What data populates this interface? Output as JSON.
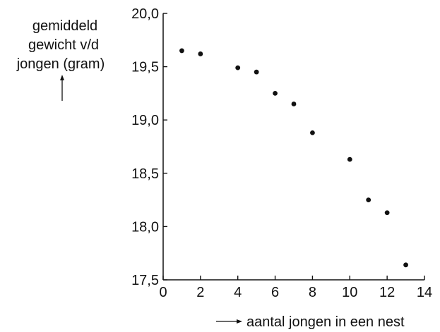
{
  "chart_data": {
    "type": "scatter",
    "title": "",
    "ylabel_lines": [
      "gemiddeld",
      "gewicht v/d",
      "jongen (gram)"
    ],
    "xlabel": "aantal jongen in een nest",
    "xlim": [
      0,
      14
    ],
    "ylim": [
      17.5,
      20.0
    ],
    "x_ticks": [
      {
        "value": 0,
        "label": "0"
      },
      {
        "value": 2,
        "label": "2"
      },
      {
        "value": 4,
        "label": "4"
      },
      {
        "value": 6,
        "label": "6"
      },
      {
        "value": 8,
        "label": "8"
      },
      {
        "value": 10,
        "label": "10"
      },
      {
        "value": 12,
        "label": "12"
      },
      {
        "value": 14,
        "label": "14"
      }
    ],
    "y_ticks": [
      {
        "value": 17.5,
        "label": "17,5"
      },
      {
        "value": 18.0,
        "label": "18,0"
      },
      {
        "value": 18.5,
        "label": "18,5"
      },
      {
        "value": 19.0,
        "label": "19,0"
      },
      {
        "value": 19.5,
        "label": "19,5"
      },
      {
        "value": 20.0,
        "label": "20,0"
      }
    ],
    "grid": false,
    "legend": "none",
    "marker_color": "#111111",
    "points": [
      {
        "x": 1,
        "y": 19.65
      },
      {
        "x": 2,
        "y": 19.62
      },
      {
        "x": 4,
        "y": 19.49
      },
      {
        "x": 5,
        "y": 19.45
      },
      {
        "x": 6,
        "y": 19.25
      },
      {
        "x": 7,
        "y": 19.15
      },
      {
        "x": 8,
        "y": 18.88
      },
      {
        "x": 10,
        "y": 18.63
      },
      {
        "x": 11,
        "y": 18.25
      },
      {
        "x": 12,
        "y": 18.13
      },
      {
        "x": 13,
        "y": 17.64
      }
    ]
  }
}
